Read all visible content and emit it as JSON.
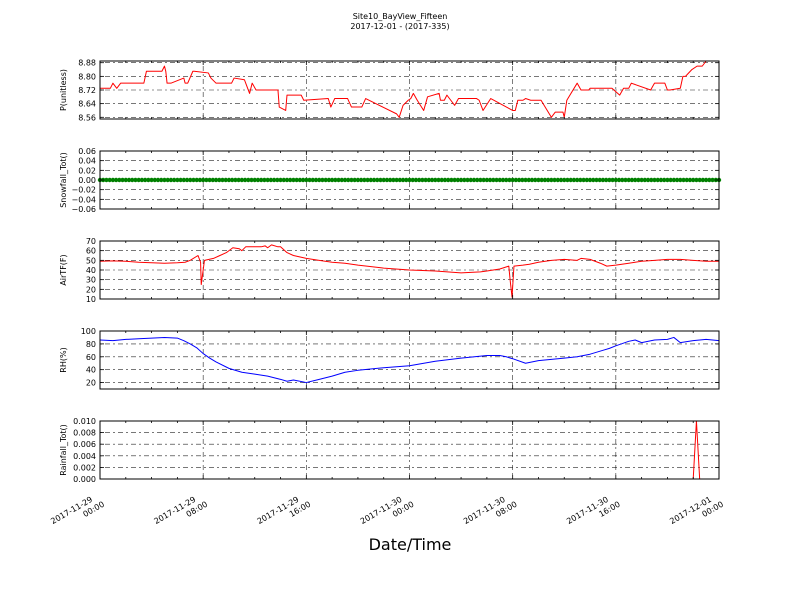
{
  "figure": {
    "title_line1": "Site10_BayView_Fifteen",
    "title_line2": "2017-12-01 - (2017-335)",
    "xlabel": "Date/Time"
  },
  "chart_data": {
    "type": "line",
    "shared_x": {
      "start": "2017-11-29 00:00",
      "end": "2017-12-01 00:00",
      "tick_labels": [
        [
          "2017-11-29",
          "00:00"
        ],
        [
          "2017-11-29",
          "08:00"
        ],
        [
          "2017-11-29",
          "16:00"
        ],
        [
          "2017-11-30",
          "00:00"
        ],
        [
          "2017-11-30",
          "08:00"
        ],
        [
          "2017-11-30",
          "16:00"
        ],
        [
          "2017-12-01",
          "00:00"
        ]
      ],
      "tick_hours": [
        0,
        8,
        16,
        24,
        32,
        40,
        48
      ],
      "minor_ticks_per_major": 4
    },
    "panels": [
      {
        "id": "p",
        "ylabel": "P(unitless)",
        "ylim": [
          8.55,
          8.89
        ],
        "yticks": [
          8.56,
          8.64,
          8.72,
          8.8,
          8.88
        ],
        "ytick_labels": [
          "8.56",
          "8.64",
          "8.72",
          "8.80",
          "8.88"
        ],
        "grid": true,
        "color": "#ff0000",
        "marker": "none",
        "x_hours": [
          0,
          0.8,
          1.0,
          1.3,
          1.6,
          3.4,
          3.6,
          4.8,
          5.0,
          5.1,
          5.2,
          5.5,
          6.5,
          6.6,
          6.8,
          7.2,
          7.3,
          8.4,
          8.6,
          9.0,
          10.2,
          10.4,
          11.2,
          11.3,
          11.6,
          11.8,
          12.1,
          13.8,
          13.9,
          14.4,
          14.5,
          15.6,
          15.8,
          17.7,
          17.9,
          18.2,
          19.2,
          19.5,
          20.3,
          20.6,
          23.0,
          23.2,
          23.5,
          23.9,
          24.1,
          24.3,
          24.6,
          25.1,
          25.4,
          26.3,
          26.4,
          26.7,
          26.9,
          27.2,
          27.5,
          27.8,
          28.2,
          28.5,
          29.2,
          29.4,
          29.7,
          30.3,
          32.0,
          32.2,
          32.4,
          32.8,
          33.0,
          33.4,
          34.2,
          35.0,
          35.3,
          35.9,
          36.0,
          36.2,
          37.0,
          37.3,
          37.7,
          37.9,
          38.0,
          39.5,
          39.7,
          40.3,
          40.6,
          41.0,
          41.2,
          42.7,
          43.0,
          43.3,
          43.5,
          43.8,
          44.0,
          44.2,
          45.0,
          45.2,
          45.4,
          45.9,
          46.3,
          46.7,
          47.0,
          47.4,
          47.7,
          48.0
        ],
        "values": [
          8.73,
          8.73,
          8.76,
          8.73,
          8.76,
          8.76,
          8.83,
          8.83,
          8.86,
          8.83,
          8.76,
          8.76,
          8.79,
          8.76,
          8.76,
          8.83,
          8.83,
          8.82,
          8.79,
          8.76,
          8.76,
          8.79,
          8.78,
          8.76,
          8.7,
          8.76,
          8.72,
          8.72,
          8.62,
          8.6,
          8.69,
          8.69,
          8.66,
          8.67,
          8.62,
          8.67,
          8.67,
          8.62,
          8.62,
          8.67,
          8.58,
          8.56,
          8.63,
          8.66,
          8.67,
          8.7,
          8.66,
          8.6,
          8.68,
          8.7,
          8.66,
          8.66,
          8.69,
          8.66,
          8.63,
          8.67,
          8.67,
          8.67,
          8.67,
          8.66,
          8.6,
          8.67,
          8.6,
          8.6,
          8.66,
          8.66,
          8.67,
          8.66,
          8.66,
          8.56,
          8.59,
          8.59,
          8.56,
          8.66,
          8.76,
          8.72,
          8.72,
          8.72,
          8.73,
          8.73,
          8.73,
          8.69,
          8.73,
          8.73,
          8.76,
          8.72,
          8.76,
          8.76,
          8.76,
          8.76,
          8.72,
          8.72,
          8.73,
          8.8,
          8.8,
          8.84,
          8.86,
          8.86,
          8.89,
          8.89,
          8.89,
          8.89
        ]
      },
      {
        "id": "snow",
        "ylabel": "Snowfall_Tot()",
        "ylim": [
          -0.06,
          0.06
        ],
        "yticks": [
          -0.06,
          -0.04,
          -0.02,
          0.0,
          0.02,
          0.04,
          0.06
        ],
        "ytick_labels": [
          "−0.06",
          "−0.04",
          "−0.02",
          "0.00",
          "0.02",
          "0.04",
          "0.06"
        ],
        "grid": true,
        "color": "#008000",
        "marker": "dot",
        "point_interval_hours": 0.25,
        "x_hours": [
          0,
          48
        ],
        "values": [
          0.0,
          0.0
        ]
      },
      {
        "id": "air",
        "ylabel": "AirTF(F)",
        "ylim": [
          10,
          70
        ],
        "yticks": [
          10,
          20,
          30,
          40,
          50,
          60,
          70
        ],
        "ytick_labels": [
          "10",
          "20",
          "30",
          "40",
          "50",
          "60",
          "70"
        ],
        "grid": true,
        "color": "#ff0000",
        "marker": "none",
        "x_hours": [
          0,
          1,
          2,
          3,
          4,
          5,
          6,
          6.6,
          7,
          7.6,
          7.8,
          7.85,
          8.1,
          8.8,
          9.3,
          9.8,
          10.3,
          10.8,
          11.0,
          11.3,
          11.7,
          12.0,
          12.5,
          12.8,
          13.0,
          13.3,
          13.8,
          14.0,
          14.5,
          15.0,
          16.0,
          17.0,
          18.0,
          19.0,
          20.0,
          22.0,
          24.0,
          26.0,
          28.0,
          29.5,
          30.0,
          31.0,
          31.7,
          31.8,
          31.95,
          32.1,
          32.8,
          33.3,
          34.0,
          35.0,
          36.0,
          37.0,
          37.3,
          38.0,
          38.8,
          39.3,
          40.0,
          41.0,
          42.0,
          43.0,
          44.0,
          45.0,
          46.0,
          47.0,
          48.0
        ],
        "values": [
          49,
          49.5,
          49,
          48,
          47.5,
          47,
          47.5,
          48,
          50,
          55,
          48,
          25,
          50,
          52,
          55,
          58,
          63,
          62,
          60,
          64,
          64,
          64,
          64,
          65,
          63,
          66,
          64,
          64,
          58,
          55,
          52,
          50,
          48,
          47,
          45,
          42,
          40,
          39,
          37,
          38,
          39,
          41,
          44,
          30,
          12,
          44,
          45,
          46,
          48,
          50,
          51,
          50,
          52,
          51,
          47,
          44,
          45,
          47,
          49,
          50,
          51,
          51,
          50,
          49,
          49
        ]
      },
      {
        "id": "rh",
        "ylabel": "RH(%)",
        "ylim": [
          10,
          100
        ],
        "yticks": [
          20,
          40,
          60,
          80,
          100
        ],
        "ytick_labels": [
          "20",
          "40",
          "60",
          "80",
          "100"
        ],
        "grid": true,
        "color": "#0000ff",
        "marker": "none",
        "x_hours": [
          0,
          1,
          2,
          3,
          4,
          5,
          6,
          6.5,
          7,
          7.5,
          8,
          8.5,
          9,
          10,
          11,
          12,
          13,
          14,
          14.5,
          15,
          16,
          17,
          18,
          19,
          20,
          22,
          24,
          26,
          28,
          30,
          31,
          31.5,
          32,
          33,
          34,
          35,
          36,
          37,
          38,
          39,
          39.5,
          40,
          41,
          41.5,
          42,
          43,
          44,
          44.5,
          45,
          46,
          47,
          48
        ],
        "values": [
          86,
          85,
          87,
          88,
          89,
          90,
          89,
          85,
          80,
          74,
          65,
          58,
          52,
          42,
          36,
          33,
          30,
          25,
          22,
          24,
          20,
          25,
          30,
          36,
          39,
          43,
          46,
          53,
          58,
          62,
          62,
          60,
          57,
          50,
          54,
          56,
          58,
          60,
          64,
          70,
          73,
          77,
          84,
          86,
          82,
          86,
          87,
          90,
          82,
          85,
          87,
          85
        ]
      },
      {
        "id": "rain",
        "ylabel": "Rainfall_Tot()",
        "ylim": [
          0,
          0.01
        ],
        "yticks": [
          0.0,
          0.002,
          0.004,
          0.006,
          0.008,
          0.01
        ],
        "ytick_labels": [
          "0.000",
          "0.002",
          "0.004",
          "0.006",
          "0.008",
          "0.010"
        ],
        "grid": true,
        "color": "#ff0000",
        "marker": "none",
        "x_hours": [
          0,
          46.0,
          46.25,
          46.5,
          48.0
        ],
        "values": [
          0,
          0,
          0.01,
          0,
          0
        ]
      }
    ]
  }
}
